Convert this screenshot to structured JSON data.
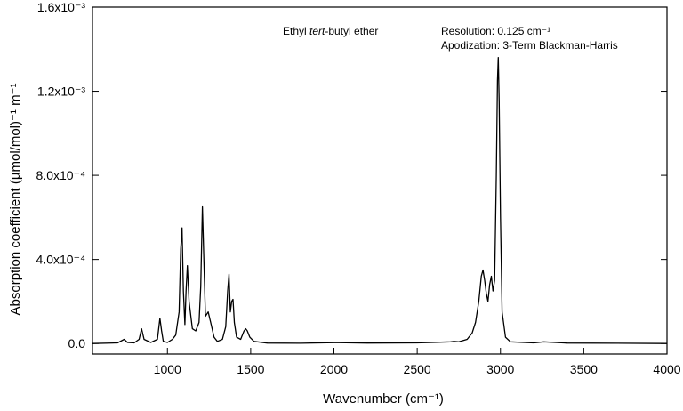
{
  "chart_data": {
    "type": "line",
    "xlabel": "Wavenumber (cm⁻¹)",
    "ylabel": "Absorption coefficient  (µmol/mol)⁻¹ m⁻¹",
    "xlim": [
      550,
      4000
    ],
    "ylim": [
      -5e-05,
      0.0016
    ],
    "x_ticks": [
      1000,
      1500,
      2000,
      2500,
      3000,
      3500,
      4000
    ],
    "x_tick_labels": [
      "1000",
      "1500",
      "2000",
      "2500",
      "3000",
      "3500",
      "4000"
    ],
    "y_ticks": [
      0,
      0.0004,
      0.0008,
      0.0012,
      0.0016
    ],
    "y_tick_labels": [
      "0.0",
      "4.0x10⁻⁴",
      "8.0x10⁻⁴",
      "1.2x10⁻³",
      "1.6x10⁻³"
    ],
    "grid": false,
    "annotations": [
      {
        "text": "Ethyl tert-butyl ether",
        "parts": [
          "Ethyl ",
          "tert",
          "-butyl ether"
        ]
      },
      {
        "text": "Resolution:   0.125 cm⁻¹"
      },
      {
        "text": "Apodization: 3-Term Blackman-Harris"
      }
    ],
    "series": [
      {
        "x": [
          550,
          700,
          740,
          760,
          800,
          830,
          845,
          860,
          900,
          940,
          955,
          965,
          975,
          1000,
          1030,
          1050,
          1070,
          1080,
          1088,
          1096,
          1105,
          1112,
          1120,
          1130,
          1150,
          1170,
          1190,
          1200,
          1210,
          1218,
          1228,
          1245,
          1260,
          1280,
          1300,
          1330,
          1350,
          1362,
          1370,
          1378,
          1386,
          1394,
          1402,
          1415,
          1440,
          1460,
          1470,
          1480,
          1495,
          1520,
          1600,
          1800,
          2000,
          2200,
          2500,
          2620,
          2700,
          2720,
          2750,
          2800,
          2830,
          2850,
          2870,
          2885,
          2895,
          2905,
          2915,
          2925,
          2935,
          2945,
          2955,
          2965,
          2975,
          2982,
          2987,
          2992,
          3000,
          3010,
          3030,
          3060,
          3200,
          3260,
          3400,
          3700,
          4000
        ],
        "y": [
          0,
          3e-06,
          2e-05,
          5e-06,
          3e-06,
          2e-05,
          7e-05,
          2e-05,
          5e-06,
          2e-05,
          0.00012,
          6e-05,
          1e-05,
          5e-06,
          2e-05,
          4e-05,
          0.00015,
          0.00045,
          0.00055,
          0.00025,
          9e-05,
          0.00025,
          0.00037,
          0.0002,
          7e-05,
          6e-05,
          0.0001,
          0.00027,
          0.00065,
          0.00042,
          0.00013,
          0.00015,
          0.0001,
          3e-05,
          1e-05,
          2e-05,
          8e-05,
          0.00025,
          0.00033,
          0.00015,
          0.0002,
          0.00021,
          0.0001,
          3e-05,
          2e-05,
          6e-05,
          7e-05,
          6e-05,
          3e-05,
          1e-05,
          2e-06,
          1e-06,
          4e-06,
          2e-06,
          3e-06,
          6e-06,
          8e-06,
          1e-05,
          8e-06,
          2e-05,
          5e-05,
          0.0001,
          0.0002,
          0.00032,
          0.00035,
          0.0003,
          0.00024,
          0.0002,
          0.00028,
          0.00032,
          0.00025,
          0.0003,
          0.0008,
          0.00125,
          0.00136,
          0.00115,
          0.0006,
          0.00015,
          3e-05,
          8e-06,
          3e-06,
          8e-06,
          2e-06,
          1e-06,
          0
        ]
      }
    ]
  }
}
